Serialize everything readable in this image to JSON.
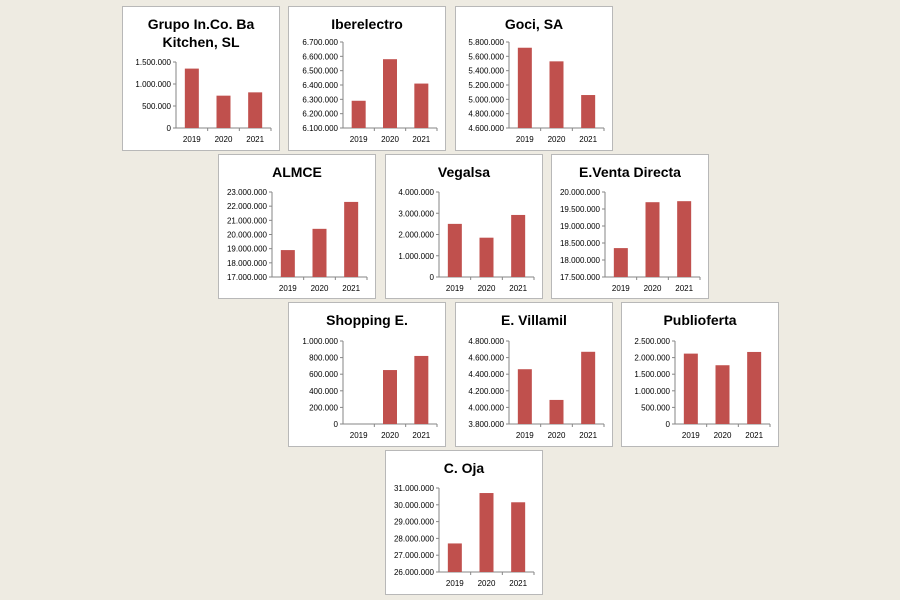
{
  "colors": {
    "bar": "#c0504d",
    "axis": "#868686",
    "background": "#eeebe2"
  },
  "chart_data": [
    {
      "type": "bar",
      "title_lines": [
        "Grupo In.Co. Ba",
        "Kitchen, SL"
      ],
      "categories": [
        "2019",
        "2020",
        "2021"
      ],
      "values": [
        1350000,
        735000,
        810000
      ],
      "ylim": [
        0,
        1500000
      ],
      "yticks": [
        "0",
        "500.000",
        "1.000.000",
        "1.500.000"
      ],
      "grid": false,
      "legend": "none"
    },
    {
      "type": "bar",
      "title_lines": [
        "Iberelectro"
      ],
      "categories": [
        "2019",
        "2020",
        "2021"
      ],
      "values": [
        6290000,
        6580000,
        6410000
      ],
      "ylim": [
        6100000,
        6700000
      ],
      "yticks": [
        "6.100.000",
        "6.200.000",
        "6.300.000",
        "6.400.000",
        "6.500.000",
        "6.600.000",
        "6.700.000"
      ],
      "grid": false,
      "legend": "none"
    },
    {
      "type": "bar",
      "title_lines": [
        "Goci, SA"
      ],
      "categories": [
        "2019",
        "2020",
        "2021"
      ],
      "values": [
        5720000,
        5530000,
        5060000
      ],
      "ylim": [
        4600000,
        5800000
      ],
      "yticks": [
        "4.600.000",
        "4.800.000",
        "5.000.000",
        "5.200.000",
        "5.400.000",
        "5.600.000",
        "5.800.000"
      ],
      "grid": false,
      "legend": "none"
    },
    {
      "type": "bar",
      "title_lines": [
        "ALMCE"
      ],
      "categories": [
        "2019",
        "2020",
        "2021"
      ],
      "values": [
        18900000,
        20400000,
        22300000
      ],
      "ylim": [
        17000000,
        23000000
      ],
      "yticks": [
        "17.000.000",
        "18.000.000",
        "19.000.000",
        "20.000.000",
        "21.000.000",
        "22.000.000",
        "23.000.000"
      ],
      "grid": false,
      "legend": "none"
    },
    {
      "type": "bar",
      "title_lines": [
        "Vegalsa"
      ],
      "categories": [
        "2019",
        "2020",
        "2021"
      ],
      "values": [
        2500000,
        1850000,
        2920000
      ],
      "ylim": [
        0,
        4000000
      ],
      "yticks": [
        "0",
        "1.000.000",
        "2.000.000",
        "3.000.000",
        "4.000.000"
      ],
      "grid": false,
      "legend": "none"
    },
    {
      "type": "bar",
      "title_lines": [
        "E.Venta Directa"
      ],
      "categories": [
        "2019",
        "2020",
        "2021"
      ],
      "values": [
        18350000,
        19700000,
        19730000
      ],
      "ylim": [
        17500000,
        20000000
      ],
      "yticks": [
        "17.500.000",
        "18.000.000",
        "18.500.000",
        "19.000.000",
        "19.500.000",
        "20.000.000"
      ],
      "grid": false,
      "legend": "none"
    },
    {
      "type": "bar",
      "title_lines": [
        "Shopping  E."
      ],
      "categories": [
        "2019",
        "2020",
        "2021"
      ],
      "values": [
        0,
        650000,
        820000
      ],
      "ylim": [
        0,
        1000000
      ],
      "yticks": [
        "0",
        "200.000",
        "400.000",
        "600.000",
        "800.000",
        "1.000.000"
      ],
      "grid": false,
      "legend": "none"
    },
    {
      "type": "bar",
      "title_lines": [
        "E. Villamil"
      ],
      "categories": [
        "2019",
        "2020",
        "2021"
      ],
      "values": [
        4460000,
        4090000,
        4670000
      ],
      "ylim": [
        3800000,
        4800000
      ],
      "yticks": [
        "3.800.000",
        "4.000.000",
        "4.200.000",
        "4.400.000",
        "4.600.000",
        "4.800.000"
      ],
      "grid": false,
      "legend": "none"
    },
    {
      "type": "bar",
      "title_lines": [
        "Publioferta"
      ],
      "categories": [
        "2019",
        "2020",
        "2021"
      ],
      "values": [
        2120000,
        1770000,
        2170000
      ],
      "ylim": [
        0,
        2500000
      ],
      "yticks": [
        "0",
        "500.000",
        "1.000.000",
        "1.500.000",
        "2.000.000",
        "2.500.000"
      ],
      "grid": false,
      "legend": "none"
    },
    {
      "type": "bar",
      "title_lines": [
        "C. Oja"
      ],
      "categories": [
        "2019",
        "2020",
        "2021"
      ],
      "values": [
        27700000,
        30700000,
        30150000
      ],
      "ylim": [
        26000000,
        31000000
      ],
      "yticks": [
        "26.000.000",
        "27.000.000",
        "28.000.000",
        "29.000.000",
        "30.000.000",
        "31.000.000"
      ],
      "grid": false,
      "legend": "none"
    }
  ]
}
